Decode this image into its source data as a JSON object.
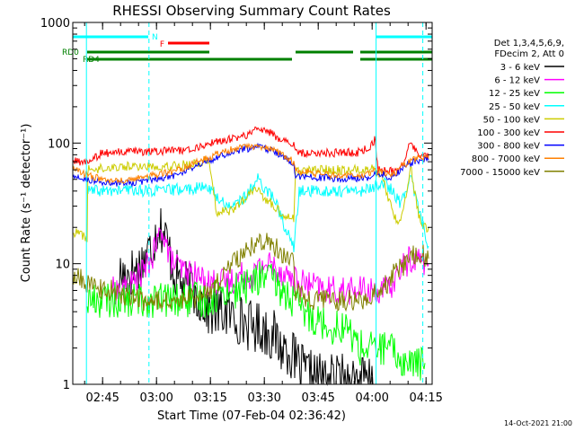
{
  "chart_data": {
    "type": "line",
    "title": "RHESSI Observing Summary Count Rates",
    "xlabel": "Start Time (07-Feb-04 02:36:42)",
    "ylabel": "Count Rate (s⁻¹ detector⁻¹)",
    "yscale": "log",
    "ylim": [
      1,
      1000
    ],
    "xlim_minutes": [
      0,
      100
    ],
    "x_ticks": [
      {
        "label": "02:45",
        "min": 8.3
      },
      {
        "label": "03:00",
        "min": 23.3
      },
      {
        "label": "03:15",
        "min": 38.3
      },
      {
        "label": "03:30",
        "min": 53.3
      },
      {
        "label": "03:45",
        "min": 68.3
      },
      {
        "label": "04:00",
        "min": 83.3
      },
      {
        "label": "04:15",
        "min": 98.3
      }
    ],
    "y_ticks": [
      {
        "label": "1",
        "v": 1
      },
      {
        "label": "10",
        "v": 10
      },
      {
        "label": "100",
        "v": 100
      },
      {
        "label": "1000",
        "v": 1000
      }
    ],
    "legend_header": [
      "Det 1,3,4,5,6,9,",
      "FDecim 2, Att 0"
    ],
    "timestamp": "14-Oct-2021 21:00",
    "flags": {
      "night": {
        "label": "N",
        "color": "#00ffff",
        "segments": [
          [
            0,
            21
          ],
          [
            84.5,
            100
          ]
        ]
      },
      "flare": {
        "label": "F",
        "color": "#ff0000",
        "segments": [
          [
            26.5,
            38
          ]
        ]
      },
      "rd0": {
        "label": "RD0",
        "color": "#008000",
        "segments": [
          [
            4,
            38
          ],
          [
            62,
            78
          ],
          [
            80,
            100
          ]
        ]
      },
      "rd4": {
        "label": "RD4",
        "color": "#008000",
        "segments": [
          [
            4,
            38
          ],
          [
            38,
            61
          ],
          [
            80,
            100
          ]
        ]
      }
    },
    "vlines": [
      {
        "min": 3.8,
        "color": "#00ffff",
        "style": "solid"
      },
      {
        "min": 21.2,
        "color": "#00ffff",
        "style": "dashed"
      },
      {
        "min": 84.4,
        "color": "#00ffff",
        "style": "solid"
      },
      {
        "min": 97.4,
        "color": "#00ffff",
        "style": "dashed"
      }
    ],
    "series": [
      {
        "name": "3 - 6 keV",
        "color": "#000000",
        "points": [
          [
            13,
            8
          ],
          [
            18,
            9
          ],
          [
            22,
            14
          ],
          [
            24,
            22
          ],
          [
            26,
            16
          ],
          [
            28,
            9
          ],
          [
            30,
            7
          ],
          [
            33,
            6
          ],
          [
            36,
            5
          ],
          [
            38,
            4
          ],
          [
            42,
            4
          ],
          [
            46,
            3.5
          ],
          [
            50,
            3
          ],
          [
            52,
            3
          ],
          [
            56,
            2.5
          ],
          [
            58,
            2
          ],
          [
            60,
            2
          ],
          [
            62,
            1.5
          ],
          [
            65,
            1.2
          ],
          [
            70,
            1.1
          ],
          [
            75,
            1.1
          ],
          [
            80,
            1.1
          ],
          [
            84,
            1
          ]
        ]
      },
      {
        "name": "6 - 12 keV",
        "color": "#ff00ff",
        "points": [
          [
            11,
            6
          ],
          [
            14,
            6
          ],
          [
            17,
            7
          ],
          [
            20,
            9
          ],
          [
            22,
            11
          ],
          [
            25,
            20
          ],
          [
            27,
            11
          ],
          [
            30,
            9
          ],
          [
            34,
            8
          ],
          [
            38,
            7
          ],
          [
            43,
            7
          ],
          [
            47,
            8
          ],
          [
            50,
            8
          ],
          [
            53,
            10
          ],
          [
            55,
            10
          ],
          [
            57,
            9
          ],
          [
            60,
            8
          ],
          [
            63,
            7
          ],
          [
            67,
            6.5
          ],
          [
            70,
            6
          ],
          [
            75,
            6
          ],
          [
            80,
            6
          ],
          [
            84,
            6
          ],
          [
            88,
            6
          ],
          [
            91,
            9
          ],
          [
            94,
            11
          ],
          [
            97,
            11
          ],
          [
            99,
            10
          ]
        ]
      },
      {
        "name": "12 - 25 keV",
        "color": "#00ff00",
        "points": [
          [
            4,
            5
          ],
          [
            10,
            5
          ],
          [
            15,
            5
          ],
          [
            20,
            5
          ],
          [
            26,
            5
          ],
          [
            30,
            5
          ],
          [
            34,
            5
          ],
          [
            38,
            5
          ],
          [
            42,
            6
          ],
          [
            46,
            6
          ],
          [
            50,
            7
          ],
          [
            53,
            8
          ],
          [
            56,
            7
          ],
          [
            58,
            6
          ],
          [
            61,
            5
          ],
          [
            64,
            4
          ],
          [
            68,
            3.5
          ],
          [
            72,
            3
          ],
          [
            76,
            3
          ],
          [
            80,
            2
          ],
          [
            84,
            2
          ],
          [
            88,
            2
          ],
          [
            92,
            1.5
          ],
          [
            95,
            1.5
          ],
          [
            98,
            1.5
          ]
        ]
      },
      {
        "name": "25 - 50 keV",
        "color": "#00ffff",
        "points": [
          [
            4,
            40
          ],
          [
            10,
            40
          ],
          [
            16,
            41
          ],
          [
            22,
            40
          ],
          [
            28,
            41
          ],
          [
            34,
            42
          ],
          [
            38,
            43
          ],
          [
            40,
            36
          ],
          [
            43,
            30
          ],
          [
            46,
            32
          ],
          [
            49,
            38
          ],
          [
            51,
            52
          ],
          [
            53,
            44
          ],
          [
            55,
            38
          ],
          [
            57,
            30
          ],
          [
            59,
            20
          ],
          [
            61,
            15
          ],
          [
            61.5,
            13
          ],
          [
            63,
            40
          ],
          [
            68,
            40
          ],
          [
            75,
            40
          ],
          [
            80,
            40
          ],
          [
            83,
            42
          ],
          [
            86,
            48
          ],
          [
            89,
            40
          ],
          [
            91,
            32
          ],
          [
            93,
            38
          ],
          [
            94,
            60
          ],
          [
            95,
            40
          ],
          [
            98,
            18
          ],
          [
            99,
            14
          ]
        ]
      },
      {
        "name": "50 - 100 keV",
        "color": "#cccc00",
        "points": [
          [
            0,
            18
          ],
          [
            2,
            18
          ],
          [
            4,
            16
          ],
          [
            4.2,
            60
          ],
          [
            8,
            62
          ],
          [
            14,
            64
          ],
          [
            20,
            64
          ],
          [
            28,
            65
          ],
          [
            34,
            67
          ],
          [
            38,
            72
          ],
          [
            40,
            27
          ],
          [
            43,
            27
          ],
          [
            46,
            30
          ],
          [
            49,
            37
          ],
          [
            51,
            42
          ],
          [
            53,
            36
          ],
          [
            55,
            32
          ],
          [
            57,
            28
          ],
          [
            59,
            25
          ],
          [
            61.5,
            24
          ],
          [
            62,
            58
          ],
          [
            68,
            60
          ],
          [
            75,
            60
          ],
          [
            80,
            60
          ],
          [
            83,
            62
          ],
          [
            86,
            55
          ],
          [
            89,
            26
          ],
          [
            91,
            22
          ],
          [
            93,
            40
          ],
          [
            94,
            68
          ],
          [
            95,
            40
          ],
          [
            97,
            20
          ],
          [
            99,
            20
          ]
        ]
      },
      {
        "name": "100 - 300 keV",
        "color": "#ff0000",
        "points": [
          [
            0,
            70
          ],
          [
            4,
            70
          ],
          [
            8,
            82
          ],
          [
            14,
            84
          ],
          [
            20,
            85
          ],
          [
            28,
            86
          ],
          [
            34,
            90
          ],
          [
            38,
            100
          ],
          [
            40,
            102
          ],
          [
            44,
            108
          ],
          [
            48,
            115
          ],
          [
            51,
            132
          ],
          [
            54,
            125
          ],
          [
            57,
            112
          ],
          [
            60,
            100
          ],
          [
            61.5,
            98
          ],
          [
            62,
            82
          ],
          [
            68,
            83
          ],
          [
            75,
            83
          ],
          [
            80,
            84
          ],
          [
            83,
            95
          ],
          [
            84,
            108
          ],
          [
            85,
            60
          ],
          [
            88,
            58
          ],
          [
            91,
            60
          ],
          [
            93,
            80
          ],
          [
            94,
            106
          ],
          [
            96,
            80
          ],
          [
            99,
            76
          ]
        ]
      },
      {
        "name": "300 - 800 keV",
        "color": "#0000ff",
        "points": [
          [
            0,
            52
          ],
          [
            4,
            50
          ],
          [
            8,
            47
          ],
          [
            12,
            46
          ],
          [
            16,
            47
          ],
          [
            20,
            48
          ],
          [
            24,
            51
          ],
          [
            28,
            54
          ],
          [
            32,
            60
          ],
          [
            36,
            68
          ],
          [
            40,
            76
          ],
          [
            44,
            84
          ],
          [
            48,
            90
          ],
          [
            52,
            92
          ],
          [
            56,
            86
          ],
          [
            59,
            76
          ],
          [
            61.5,
            68
          ],
          [
            62,
            53
          ],
          [
            66,
            52
          ],
          [
            72,
            51
          ],
          [
            78,
            51
          ],
          [
            82,
            52
          ],
          [
            84,
            55
          ],
          [
            86,
            56
          ],
          [
            88,
            52
          ],
          [
            90,
            55
          ],
          [
            92,
            64
          ],
          [
            94,
            68
          ],
          [
            96,
            72
          ],
          [
            99,
            72
          ]
        ]
      },
      {
        "name": "800 - 7000 keV",
        "color": "#ff8000",
        "points": [
          [
            0,
            60
          ],
          [
            4,
            55
          ],
          [
            8,
            50
          ],
          [
            12,
            48
          ],
          [
            16,
            49
          ],
          [
            20,
            52
          ],
          [
            24,
            55
          ],
          [
            28,
            58
          ],
          [
            32,
            64
          ],
          [
            36,
            72
          ],
          [
            40,
            80
          ],
          [
            44,
            88
          ],
          [
            48,
            94
          ],
          [
            52,
            95
          ],
          [
            56,
            88
          ],
          [
            59,
            78
          ],
          [
            61.5,
            70
          ],
          [
            62,
            58
          ],
          [
            66,
            56
          ],
          [
            72,
            54
          ],
          [
            78,
            54
          ],
          [
            82,
            55
          ],
          [
            84,
            58
          ],
          [
            86,
            57
          ],
          [
            88,
            55
          ],
          [
            90,
            58
          ],
          [
            92,
            66
          ],
          [
            94,
            70
          ],
          [
            96,
            75
          ],
          [
            99,
            74
          ]
        ]
      },
      {
        "name": "7000 - 15000 keV",
        "color": "#808000",
        "points": [
          [
            0,
            8
          ],
          [
            4,
            7
          ],
          [
            8,
            6
          ],
          [
            12,
            6
          ],
          [
            16,
            5
          ],
          [
            20,
            5
          ],
          [
            24,
            5
          ],
          [
            28,
            5
          ],
          [
            32,
            5
          ],
          [
            36,
            5.5
          ],
          [
            38,
            6
          ],
          [
            42,
            8
          ],
          [
            46,
            11
          ],
          [
            50,
            14
          ],
          [
            53,
            15
          ],
          [
            56,
            14
          ],
          [
            59,
            12
          ],
          [
            61.5,
            10
          ],
          [
            62,
            6
          ],
          [
            66,
            5
          ],
          [
            72,
            5
          ],
          [
            78,
            5
          ],
          [
            82,
            5
          ],
          [
            85,
            6
          ],
          [
            88,
            7
          ],
          [
            90,
            9
          ],
          [
            93,
            10
          ],
          [
            95,
            12
          ],
          [
            97,
            12
          ],
          [
            99,
            11
          ]
        ]
      }
    ]
  }
}
